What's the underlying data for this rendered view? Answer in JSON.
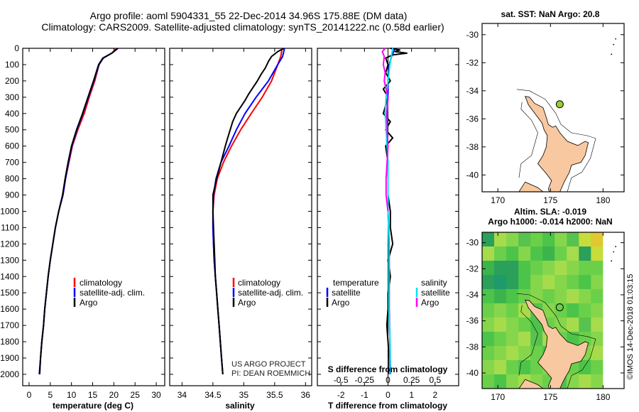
{
  "titles": {
    "line1": "Argo profile: aoml 5904331_55 22-Dec-2014 34.96S 175.88E (DM data)",
    "line2": "Climatology: CARS2009. Satellite-adjusted climatology: synTS_20141222.nc (0.58d earlier)"
  },
  "credit": {
    "line1": "US ARGO PROJECT",
    "line2": "PI: DEAN ROEMMICH"
  },
  "stamp": "©IMOS 14-Dec-2018 01:03:15",
  "colors": {
    "climatology": "#ff0000",
    "satellite": "#0000ff",
    "argo": "#000000",
    "sal_satellite": "#00e5ee",
    "sal_argo": "#ff00ff",
    "land": "#f8c8a0",
    "argo_marker": "#9acd32"
  },
  "depth_axis": {
    "ticks": [
      0,
      100,
      200,
      300,
      400,
      500,
      600,
      700,
      800,
      900,
      1000,
      1100,
      1200,
      1300,
      1400,
      1500,
      1600,
      1700,
      1800,
      1900,
      2000
    ],
    "range": [
      0,
      2070
    ]
  },
  "legend_tt": [
    "climatology",
    "satellite-adj. clim.",
    "Argo"
  ],
  "legend_diff": {
    "temp_title": "temperature",
    "sal_title": "salinity",
    "labels": [
      "satellite",
      "Argo"
    ]
  },
  "map1": {
    "title": "sat. SST: NaN Argo: 20.8",
    "xticks": [
      170,
      175,
      180
    ],
    "yticks": [
      -30,
      -32,
      -34,
      -36,
      -38,
      -40
    ],
    "xlim": [
      168.5,
      182
    ],
    "ylim": [
      -41.2,
      -29.2
    ],
    "argo_lon": 175.88,
    "argo_lat": -34.96
  },
  "map2": {
    "title1": "Altim. SLA: -0.019",
    "title2": "Argo h1000: -0.014 h2000: NaN",
    "xticks": [
      170,
      175,
      180
    ],
    "yticks": [
      -30,
      -32,
      -34,
      -36,
      -38,
      -40
    ],
    "xlim": [
      168.5,
      182
    ],
    "ylim": [
      -41.2,
      -29.2
    ],
    "argo_lon": 175.88,
    "argo_lat": -34.96
  },
  "chart_data": [
    {
      "type": "line",
      "xlabel": "temperature (deg C)",
      "ylabel": "",
      "xlim": [
        -1.5,
        32
      ],
      "xticks": [
        0,
        5,
        10,
        15,
        20,
        25,
        30
      ],
      "ylim": [
        0,
        2070
      ],
      "series": [
        {
          "name": "climatology",
          "color": "#ff0000",
          "points": [
            [
              20.6,
              0
            ],
            [
              19.5,
              30
            ],
            [
              17.5,
              60
            ],
            [
              16.5,
              100
            ],
            [
              15.5,
              200
            ],
            [
              14.2,
              300
            ],
            [
              13.0,
              400
            ],
            [
              11.5,
              500
            ],
            [
              10.2,
              600
            ],
            [
              9.4,
              700
            ],
            [
              8.6,
              800
            ],
            [
              8.0,
              900
            ],
            [
              7.0,
              1000
            ],
            [
              6.2,
              1100
            ],
            [
              5.6,
              1200
            ],
            [
              5.0,
              1300
            ],
            [
              4.5,
              1400
            ],
            [
              4.1,
              1500
            ],
            [
              3.7,
              1600
            ],
            [
              3.4,
              1700
            ],
            [
              3.0,
              1800
            ],
            [
              2.7,
              1900
            ],
            [
              2.5,
              2000
            ]
          ]
        },
        {
          "name": "satellite-adj. clim.",
          "color": "#0000ff",
          "points": [
            [
              21.0,
              0
            ],
            [
              19.5,
              30
            ],
            [
              17.5,
              60
            ],
            [
              16.5,
              100
            ],
            [
              15.3,
              200
            ],
            [
              14.0,
              300
            ],
            [
              12.7,
              400
            ],
            [
              11.3,
              500
            ],
            [
              10.1,
              600
            ],
            [
              9.3,
              700
            ],
            [
              8.6,
              800
            ],
            [
              8.0,
              900
            ],
            [
              7.0,
              1000
            ],
            [
              6.2,
              1100
            ],
            [
              5.6,
              1200
            ],
            [
              5.0,
              1300
            ],
            [
              4.5,
              1400
            ],
            [
              4.1,
              1500
            ],
            [
              3.7,
              1600
            ],
            [
              3.4,
              1700
            ],
            [
              3.0,
              1800
            ],
            [
              2.7,
              1900
            ],
            [
              2.5,
              2000
            ]
          ]
        },
        {
          "name": "Argo",
          "color": "#000000",
          "points": [
            [
              20.9,
              0
            ],
            [
              19.5,
              30
            ],
            [
              17.4,
              60
            ],
            [
              16.4,
              100
            ],
            [
              15.2,
              200
            ],
            [
              13.9,
              300
            ],
            [
              12.6,
              400
            ],
            [
              11.2,
              500
            ],
            [
              10.0,
              600
            ],
            [
              9.2,
              700
            ],
            [
              8.5,
              800
            ],
            [
              7.9,
              900
            ],
            [
              7.0,
              1000
            ],
            [
              6.2,
              1100
            ],
            [
              5.6,
              1200
            ],
            [
              5.0,
              1300
            ],
            [
              4.5,
              1400
            ],
            [
              4.1,
              1500
            ],
            [
              3.7,
              1600
            ],
            [
              3.4,
              1700
            ],
            [
              3.0,
              1800
            ],
            [
              2.7,
              1900
            ],
            [
              2.4,
              2000
            ]
          ]
        }
      ]
    },
    {
      "type": "line",
      "xlabel": "salinity",
      "ylabel": "",
      "xlim": [
        33.8,
        36.1
      ],
      "xticks": [
        34,
        34.5,
        35,
        35.5,
        36
      ],
      "ylim": [
        0,
        2070
      ],
      "series": [
        {
          "name": "climatology",
          "color": "#ff0000",
          "points": [
            [
              35.62,
              0
            ],
            [
              35.6,
              50
            ],
            [
              35.55,
              100
            ],
            [
              35.45,
              200
            ],
            [
              35.3,
              300
            ],
            [
              35.12,
              400
            ],
            [
              34.95,
              500
            ],
            [
              34.8,
              600
            ],
            [
              34.67,
              700
            ],
            [
              34.57,
              800
            ],
            [
              34.52,
              900
            ],
            [
              34.5,
              1000
            ],
            [
              34.5,
              1100
            ],
            [
              34.51,
              1200
            ],
            [
              34.52,
              1300
            ],
            [
              34.54,
              1400
            ],
            [
              34.56,
              1500
            ],
            [
              34.58,
              1600
            ],
            [
              34.6,
              1700
            ],
            [
              34.62,
              1800
            ],
            [
              34.64,
              1900
            ],
            [
              34.66,
              2000
            ]
          ]
        },
        {
          "name": "satellite-adj. clim.",
          "color": "#0000ff",
          "points": [
            [
              35.66,
              0
            ],
            [
              35.63,
              50
            ],
            [
              35.55,
              100
            ],
            [
              35.4,
              200
            ],
            [
              35.2,
              300
            ],
            [
              35.02,
              400
            ],
            [
              34.88,
              500
            ],
            [
              34.76,
              600
            ],
            [
              34.63,
              700
            ],
            [
              34.55,
              800
            ],
            [
              34.51,
              900
            ],
            [
              34.5,
              1000
            ],
            [
              34.5,
              1100
            ],
            [
              34.51,
              1200
            ],
            [
              34.52,
              1300
            ],
            [
              34.54,
              1400
            ],
            [
              34.56,
              1500
            ],
            [
              34.58,
              1600
            ],
            [
              34.6,
              1700
            ],
            [
              34.62,
              1800
            ],
            [
              34.64,
              1900
            ],
            [
              34.66,
              2000
            ]
          ]
        },
        {
          "name": "Argo",
          "color": "#000000",
          "points": [
            [
              35.65,
              0
            ],
            [
              35.55,
              20
            ],
            [
              35.45,
              50
            ],
            [
              35.4,
              80
            ],
            [
              35.35,
              120
            ],
            [
              35.28,
              160
            ],
            [
              35.22,
              200
            ],
            [
              35.15,
              240
            ],
            [
              35.08,
              280
            ],
            [
              35.02,
              320
            ],
            [
              34.95,
              360
            ],
            [
              34.88,
              400
            ],
            [
              34.82,
              450
            ],
            [
              34.78,
              500
            ],
            [
              34.74,
              550
            ],
            [
              34.7,
              600
            ],
            [
              34.63,
              700
            ],
            [
              34.56,
              800
            ],
            [
              34.5,
              900
            ],
            [
              34.5,
              1000
            ],
            [
              34.51,
              1100
            ],
            [
              34.52,
              1200
            ],
            [
              34.53,
              1300
            ],
            [
              34.54,
              1400
            ],
            [
              34.56,
              1500
            ],
            [
              34.58,
              1600
            ],
            [
              34.6,
              1700
            ],
            [
              34.62,
              1800
            ],
            [
              34.64,
              1900
            ],
            [
              34.66,
              2000
            ]
          ]
        }
      ]
    },
    {
      "type": "line",
      "xlabel": "T difference from climatology",
      "xlabel_top": "S difference from climatology",
      "xlim": [
        -3,
        3
      ],
      "xticks": [
        -2,
        -1,
        0,
        1,
        2
      ],
      "top_ticks": [
        -0.5,
        -0.25,
        0,
        0.25,
        0.5
      ],
      "top_tick_labels": [
        "-0.5",
        "-0.25",
        "0",
        "0.25",
        "0.5"
      ],
      "ylim": [
        0,
        2070
      ],
      "series": [
        {
          "name": "temperature satellite",
          "color": "#0000ff",
          "points": [
            [
              0.3,
              0
            ],
            [
              0.15,
              50
            ],
            [
              0.05,
              100
            ],
            [
              0.0,
              200
            ],
            [
              0.0,
              300
            ],
            [
              -0.05,
              400
            ],
            [
              -0.05,
              500
            ],
            [
              -0.05,
              600
            ],
            [
              -0.02,
              700
            ],
            [
              0.0,
              800
            ],
            [
              0.0,
              1000
            ],
            [
              0.05,
              1200
            ],
            [
              0.05,
              1400
            ],
            [
              0.05,
              1600
            ],
            [
              0.08,
              1800
            ],
            [
              0.1,
              2000
            ]
          ]
        },
        {
          "name": "temperature Argo",
          "color": "#000000",
          "points": [
            [
              0.1,
              0
            ],
            [
              0.5,
              10
            ],
            [
              0.3,
              20
            ],
            [
              0.8,
              30
            ],
            [
              0.2,
              40
            ],
            [
              -0.1,
              60
            ],
            [
              0.0,
              100
            ],
            [
              -0.1,
              150
            ],
            [
              0.1,
              200
            ],
            [
              -0.2,
              250
            ],
            [
              0.0,
              300
            ],
            [
              -0.1,
              350
            ],
            [
              -0.2,
              400
            ],
            [
              0.1,
              450
            ],
            [
              -0.1,
              500
            ],
            [
              0.2,
              550
            ],
            [
              -0.1,
              600
            ],
            [
              0.0,
              700
            ],
            [
              0.0,
              800
            ],
            [
              0.0,
              900
            ],
            [
              0.1,
              1000
            ],
            [
              0.1,
              1100
            ],
            [
              0.2,
              1200
            ],
            [
              0.0,
              1300
            ],
            [
              0.1,
              1400
            ],
            [
              0.0,
              1500
            ],
            [
              0.0,
              1600
            ],
            [
              -0.05,
              1700
            ],
            [
              0.0,
              1800
            ],
            [
              0.05,
              1900
            ],
            [
              0.05,
              2000
            ]
          ]
        },
        {
          "name": "salinity satellite",
          "color": "#00e5ee",
          "points": [
            [
              0.05,
              0
            ],
            [
              0.02,
              100
            ],
            [
              0.0,
              200
            ],
            [
              -0.02,
              300
            ],
            [
              -0.03,
              400
            ],
            [
              -0.02,
              500
            ],
            [
              -0.01,
              600
            ],
            [
              0.0,
              700
            ],
            [
              0.0,
              800
            ],
            [
              0.0,
              1000
            ],
            [
              0.01,
              1200
            ],
            [
              0.01,
              1400
            ],
            [
              0.01,
              1600
            ],
            [
              0.02,
              1800
            ],
            [
              0.02,
              2000
            ]
          ]
        },
        {
          "name": "salinity Argo",
          "color": "#ff00ff",
          "points": [
            [
              -0.03,
              0
            ],
            [
              -0.06,
              20
            ],
            [
              -0.04,
              50
            ],
            [
              -0.05,
              100
            ],
            [
              -0.03,
              150
            ],
            [
              -0.04,
              200
            ],
            [
              -0.02,
              250
            ],
            [
              0.0,
              300
            ],
            [
              -0.01,
              400
            ],
            [
              -0.01,
              500
            ],
            [
              0.0,
              600
            ],
            [
              -0.01,
              700
            ],
            [
              -0.02,
              800
            ],
            [
              -0.02,
              900
            ],
            [
              0.0,
              1000
            ]
          ]
        }
      ]
    }
  ]
}
